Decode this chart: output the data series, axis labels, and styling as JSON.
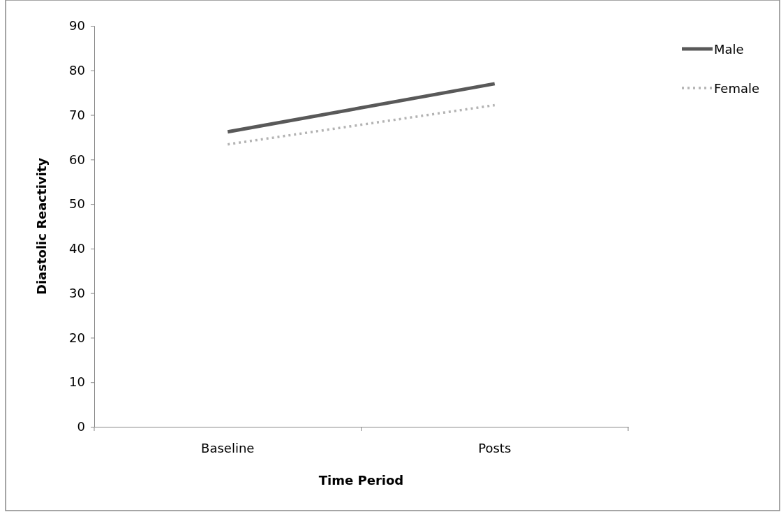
{
  "chart_data": {
    "type": "line",
    "xlabel": "Time Period",
    "ylabel": "Diastolic Reactivity",
    "categories": [
      "Baseline",
      "Posts"
    ],
    "series": [
      {
        "name": "Male",
        "color": "#595959",
        "values": [
          66.2,
          77.0
        ],
        "line_style": "solid"
      },
      {
        "name": "Female",
        "color": "#b3b3b3",
        "values": [
          63.4,
          72.2
        ],
        "line_style": "dotted"
      }
    ],
    "ylim": [
      0,
      90
    ],
    "yticks": [
      0,
      10,
      20,
      30,
      40,
      50,
      60,
      70,
      80,
      90
    ],
    "grid": false,
    "legend": "top right",
    "marker": "none"
  }
}
